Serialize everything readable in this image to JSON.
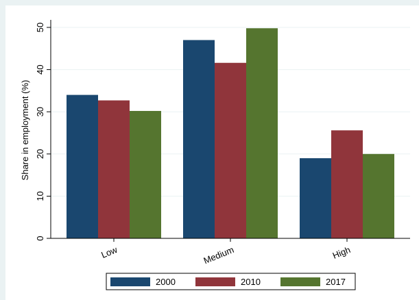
{
  "chart_data": {
    "type": "bar",
    "title": "",
    "xlabel": "",
    "ylabel": "Share in employment (%)",
    "categories": [
      "Low",
      "Medium",
      "High"
    ],
    "series": [
      {
        "name": "2000",
        "color": "#1a476f",
        "values": [
          34.0,
          47.0,
          19.0
        ]
      },
      {
        "name": "2010",
        "color": "#90353b",
        "values": [
          32.7,
          41.6,
          25.6
        ]
      },
      {
        "name": "2017",
        "color": "#55752f",
        "values": [
          30.2,
          49.8,
          20.0
        ]
      }
    ],
    "ylim": [
      0,
      52
    ],
    "yticks": [
      0,
      10,
      20,
      30,
      40,
      50
    ],
    "grid": true,
    "legend_position": "bottom"
  }
}
